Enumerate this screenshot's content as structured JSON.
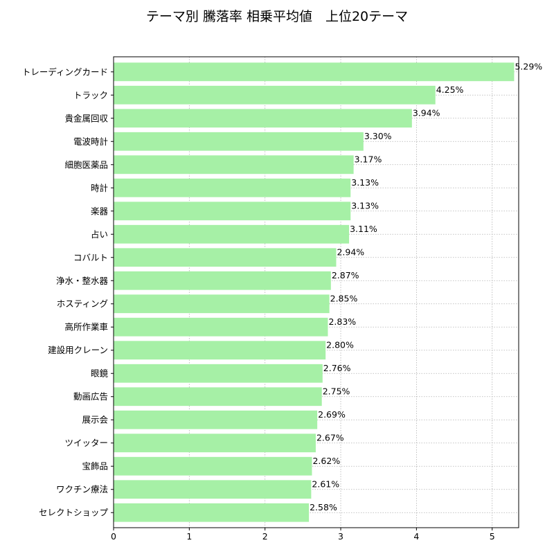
{
  "chart_data": {
    "type": "bar",
    "orientation": "horizontal",
    "title": "テーマ別 騰落率 相乗平均値　上位20テーマ",
    "xlabel": "",
    "ylabel": "",
    "xlim": [
      0,
      5.35
    ],
    "xticks": [
      0,
      1,
      2,
      3,
      4,
      5
    ],
    "grid": true,
    "bar_color": "#a6f0a6",
    "categories": [
      "トレーディングカード",
      "トラック",
      "貴金属回収",
      "電波時計",
      "細胞医薬品",
      "時計",
      "楽器",
      "占い",
      "コバルト",
      "浄水・整水器",
      "ホスティング",
      "高所作業車",
      "建設用クレーン",
      "眼鏡",
      "動画広告",
      "展示会",
      "ツイッター",
      "宝飾品",
      "ワクチン療法",
      "セレクトショップ"
    ],
    "values": [
      5.29,
      4.25,
      3.94,
      3.3,
      3.17,
      3.13,
      3.13,
      3.11,
      2.94,
      2.87,
      2.85,
      2.83,
      2.8,
      2.76,
      2.75,
      2.69,
      2.67,
      2.62,
      2.61,
      2.58
    ],
    "value_labels": [
      "5.29%",
      "4.25%",
      "3.94%",
      "3.30%",
      "3.17%",
      "3.13%",
      "3.13%",
      "3.11%",
      "2.94%",
      "2.87%",
      "2.85%",
      "2.83%",
      "2.80%",
      "2.76%",
      "2.75%",
      "2.69%",
      "2.67%",
      "2.62%",
      "2.61%",
      "2.58%"
    ]
  }
}
